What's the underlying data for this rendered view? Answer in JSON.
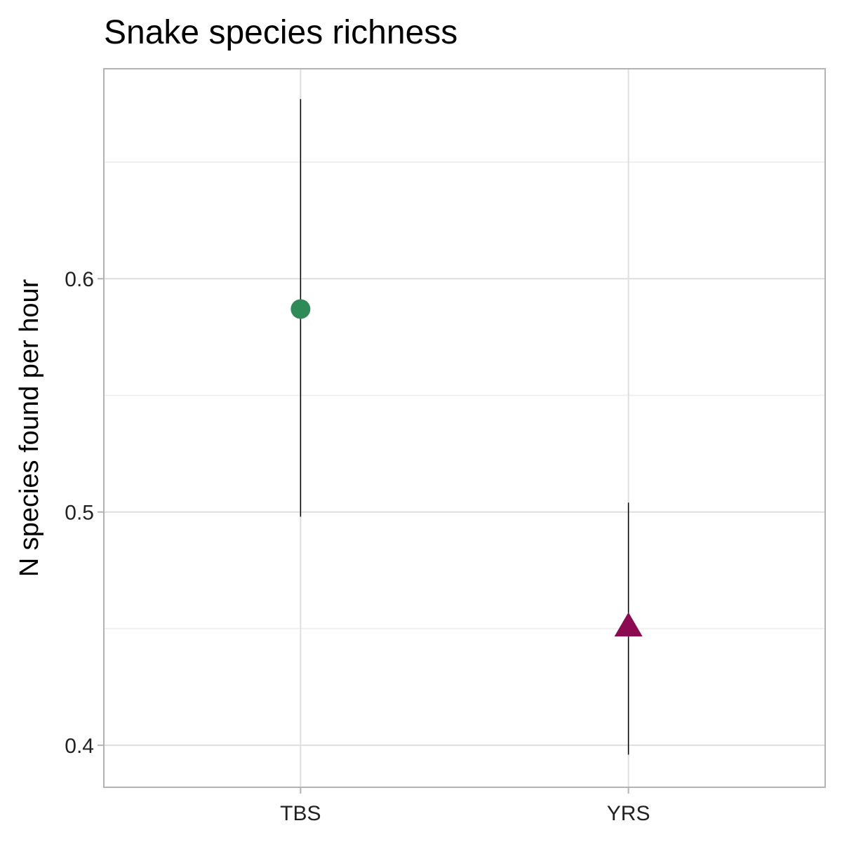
{
  "chart_data": {
    "type": "scatter",
    "title": "Snake species richness",
    "xlabel": "",
    "ylabel": "N species found per hour",
    "categories": [
      "TBS",
      "YRS"
    ],
    "ylim": [
      0.382,
      0.69
    ],
    "yticks": [
      0.4,
      0.5,
      0.6
    ],
    "ytick_labels": [
      "0.4",
      "0.5",
      "0.6"
    ],
    "grid": true,
    "legend": "none",
    "points": [
      {
        "category": "TBS",
        "value": 0.587,
        "lower": 0.498,
        "upper": 0.677,
        "shape": "circle",
        "color": "#2e8b57"
      },
      {
        "category": "YRS",
        "value": 0.451,
        "lower": 0.396,
        "upper": 0.504,
        "shape": "triangle",
        "color": "#8b0a50"
      }
    ]
  }
}
